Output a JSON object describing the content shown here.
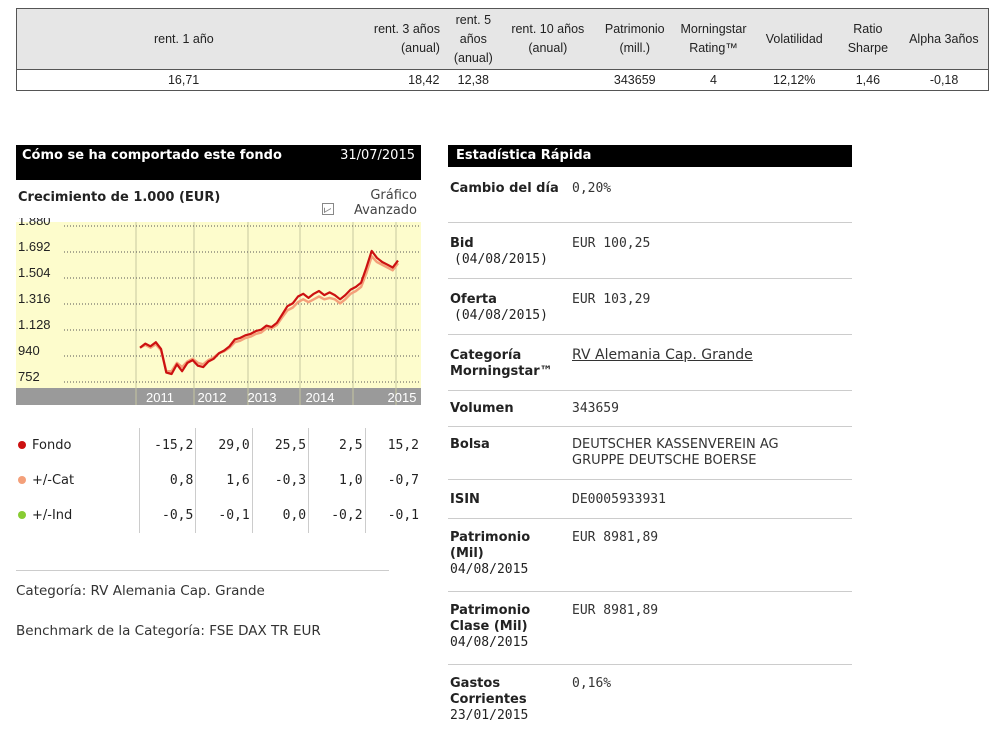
{
  "top_table": {
    "headers": [
      "rent. 1 año",
      "rent. 3 años (anual)",
      "rent. 5 años (anual)",
      "rent. 10 años (anual)",
      "Patrimonio (mill.)",
      "Morningstar Rating™",
      "Volatilidad",
      "Ratio Sharpe",
      "Alpha 3años"
    ],
    "values": [
      "16,71",
      "18,42",
      "12,38",
      "",
      "343659",
      "4",
      "12,12%",
      "1,46",
      "-0,18"
    ]
  },
  "performance": {
    "title": "Cómo se ha comportado este fondo",
    "date": "31/07/2015",
    "growth_title": "Crecimiento de 1.000 (EUR)",
    "advanced_link": "Gráfico Avanzado",
    "categoria": "Categoría: RV Alemania Cap. Grande",
    "benchmark": "Benchmark de la Categoría: FSE DAX TR EUR"
  },
  "chart_data": {
    "type": "line",
    "title": "Crecimiento de 1.000 (EUR)",
    "y_ticks": [
      "1.880",
      "1.692",
      "1.504",
      "1.316",
      "1.128",
      "940",
      "752"
    ],
    "x_ticks": [
      "2011",
      "2012",
      "2013",
      "2014",
      "2015"
    ],
    "ylim": [
      752,
      1880
    ],
    "series": [
      {
        "name": "Fondo",
        "color": "#cc1111",
        "values": [
          1000,
          1030,
          1010,
          1040,
          990,
          820,
          810,
          880,
          830,
          890,
          910,
          870,
          860,
          900,
          920,
          960,
          980,
          1010,
          1060,
          1070,
          1090,
          1100,
          1120,
          1130,
          1160,
          1150,
          1180,
          1240,
          1300,
          1320,
          1370,
          1390,
          1360,
          1390,
          1410,
          1380,
          1400,
          1380,
          1350,
          1380,
          1420,
          1440,
          1470,
          1580,
          1700,
          1650,
          1620,
          1600,
          1580,
          1630
        ]
      },
      {
        "name": "+/-Cat",
        "color": "#f4a07a",
        "values": [
          1000,
          1020,
          1000,
          1025,
          980,
          830,
          830,
          890,
          860,
          900,
          920,
          890,
          880,
          910,
          930,
          960,
          975,
          1000,
          1040,
          1050,
          1070,
          1080,
          1100,
          1110,
          1140,
          1140,
          1165,
          1220,
          1270,
          1290,
          1330,
          1350,
          1330,
          1350,
          1370,
          1350,
          1360,
          1350,
          1320,
          1350,
          1390,
          1410,
          1440,
          1540,
          1660,
          1620,
          1600,
          1580,
          1560,
          1610
        ]
      }
    ]
  },
  "returns": {
    "years": [
      "2011",
      "2012",
      "2013",
      "2014",
      "2015"
    ],
    "rows": [
      {
        "label": "Fondo",
        "color": "#cc1111",
        "values": [
          "-15,2",
          "29,0",
          "25,5",
          "2,5",
          "15,2"
        ]
      },
      {
        "label": "+/-Cat",
        "color": "#f4a07a",
        "values": [
          "0,8",
          "1,6",
          "-0,3",
          "1,0",
          "-0,7"
        ]
      },
      {
        "label": "+/-Ind",
        "color": "#88cc33",
        "values": [
          "-0,5",
          "-0,1",
          "0,0",
          "-0,2",
          "-0,1"
        ]
      }
    ]
  },
  "stats": {
    "title": "Estadística Rápida",
    "cambio_label": "Cambio del día",
    "cambio_value": "0,20%",
    "bid_label": "Bid",
    "bid_date": "(04/08/2015)",
    "bid_value": "EUR 100,25",
    "oferta_label": "Oferta",
    "oferta_date": "(04/08/2015)",
    "oferta_value": "EUR 103,29",
    "categoria_label": "Categoría Morningstar™",
    "categoria_value": "RV Alemania Cap. Grande",
    "volumen_label": "Volumen",
    "volumen_value": "343659",
    "bolsa_label": "Bolsa",
    "bolsa_value_1": "DEUTSCHER KASSENVEREIN AG",
    "bolsa_value_2": "GRUPPE DEUTSCHE BOERSE",
    "isin_label": "ISIN",
    "isin_value": "DE0005933931",
    "patrimonio_label": "Patrimonio (Mil)",
    "patrimonio_date": "04/08/2015",
    "patrimonio_value": "EUR 8981,89",
    "patrimonio_clase_label": "Patrimonio Clase (Mil)",
    "patrimonio_clase_date": "04/08/2015",
    "patrimonio_clase_value": "EUR 8981,89",
    "gastos_label": "Gastos Corrientes",
    "gastos_date": "23/01/2015",
    "gastos_value": "0,16%"
  }
}
